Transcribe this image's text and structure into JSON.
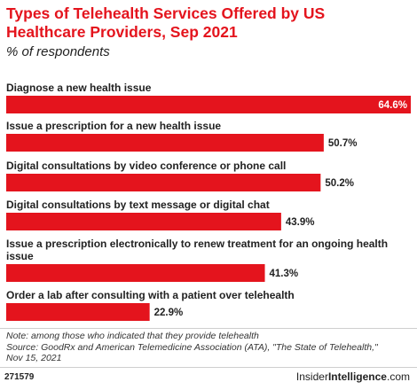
{
  "title": "Types of Telehealth Services Offered by US Healthcare Providers, Sep 2021",
  "subtitle": "% of respondents",
  "note_lines": [
    "Note: among those who indicated that they provide telehealth",
    "Source: GoodRx and American Telemedicine Association (ATA), \"The State of Telehealth,\"",
    "Nov 15, 2021"
  ],
  "chart_id": "271579",
  "brand": {
    "first": "Insider",
    "second": "Intelligence",
    "suffix": ".com"
  },
  "colors": {
    "bar": "#e4141d",
    "title": "#e4141d"
  },
  "chart_data": {
    "type": "bar",
    "orientation": "horizontal",
    "title": "Types of Telehealth Services Offered by US Healthcare Providers, Sep 2021",
    "subtitle": "% of respondents",
    "categories": [
      [
        "Diagnose a new health issue"
      ],
      [
        "Issue a prescription for a new health issue"
      ],
      [
        "Digital consultations by video conference or phone call"
      ],
      [
        "Digital consultations by text message or digital chat"
      ],
      [
        "Issue a prescription electronically to renew treatment for an ongoing health",
        "issue"
      ],
      [
        "Order a lab after consulting with a patient over telehealth"
      ]
    ],
    "values": [
      64.6,
      50.7,
      50.2,
      43.9,
      41.3,
      22.9
    ],
    "value_labels": [
      "64.6%",
      "50.7%",
      "50.2%",
      "43.9%",
      "41.3%",
      "22.9%"
    ],
    "xlim": [
      0,
      64.6
    ],
    "grid": false,
    "legend": "none"
  }
}
